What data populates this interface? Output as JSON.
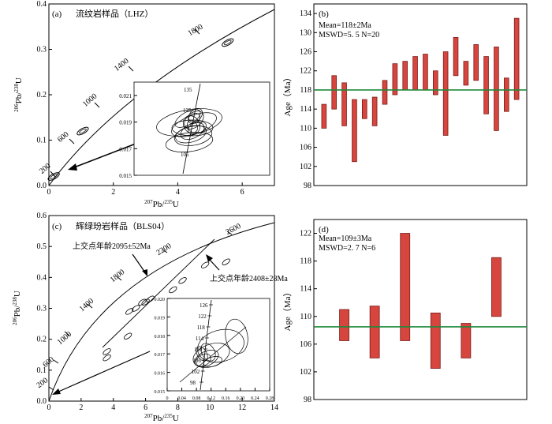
{
  "chart_data": [
    {
      "id": "a",
      "type": "scatter",
      "panel_label": "(a)",
      "title": "流纹岩样品（LHZ）",
      "xlabel_parts": [
        "207",
        "Pb/",
        "235",
        "U"
      ],
      "ylabel_parts": [
        "206",
        "Pb/",
        "238",
        "U"
      ],
      "xlim": [
        0,
        7
      ],
      "ylim": [
        0,
        0.4
      ],
      "xticks": [
        "0",
        "2",
        "4",
        "6"
      ],
      "yticks": [
        "0.0",
        "0.1",
        "0.2",
        "0.3",
        "0.4"
      ],
      "concordia_labels": [
        "200",
        "600",
        "1000",
        "1400",
        "1800"
      ],
      "ellipses": [
        {
          "x": 5.55,
          "y": 0.315
        },
        {
          "x": 1.05,
          "y": 0.12
        },
        {
          "x": 0.15,
          "y": 0.02
        }
      ],
      "inset": {
        "xlim": [
          0.02,
          0.2
        ],
        "ylim": [
          0.015,
          0.022
        ],
        "yticks": [
          "0.021",
          "0.019",
          "0.017",
          "0.015"
        ],
        "concordia_labels": [
          "135",
          "125",
          "105"
        ]
      }
    },
    {
      "id": "b",
      "type": "bar",
      "panel_label": "(b)",
      "ylabel": "Age（Ma）",
      "ylim": [
        98,
        136
      ],
      "yticks": [
        "98",
        "102",
        "106",
        "110",
        "114",
        "118",
        "122",
        "126",
        "130",
        "134"
      ],
      "stats_line1": "Mean=118±2Ma",
      "stats_line2": "MSWD=5. 5  N=20",
      "mean": 118,
      "bars": [
        [
          110,
          115
        ],
        [
          114,
          121
        ],
        [
          110.5,
          119.5
        ],
        [
          103,
          116
        ],
        [
          112,
          116
        ],
        [
          110.5,
          116.5
        ],
        [
          115,
          120
        ],
        [
          117,
          123.5
        ],
        [
          118,
          124
        ],
        [
          118,
          125
        ],
        [
          118,
          125.5
        ],
        [
          117,
          122
        ],
        [
          108.5,
          126
        ],
        [
          121,
          129
        ],
        [
          119,
          124
        ],
        [
          120,
          127.5
        ],
        [
          113,
          125
        ],
        [
          109.5,
          127
        ],
        [
          113.5,
          120.5
        ],
        [
          116,
          133
        ]
      ]
    },
    {
      "id": "c",
      "type": "scatter",
      "panel_label": "(c)",
      "title": "辉绿玢岩样品（BLS04）",
      "xlabel_parts": [
        "207",
        "Pb/",
        "235",
        "U"
      ],
      "ylabel_parts": [
        "206",
        "Pb/",
        "238",
        "U"
      ],
      "xlim": [
        0,
        14
      ],
      "ylim": [
        0,
        0.6
      ],
      "xticks": [
        "0",
        "2",
        "4",
        "6",
        "8",
        "10",
        "12",
        "14"
      ],
      "yticks": [
        "0.0",
        "0.1",
        "0.2",
        "0.3",
        "0.4",
        "0.5",
        "0.6"
      ],
      "concordia_labels": [
        "200",
        "600",
        "1000",
        "1400",
        "1800",
        "2200",
        "2600"
      ],
      "annotations": [
        "上交点年龄2095±52Ma",
        "上交点年龄2408±28Ma"
      ],
      "ellipses": [
        {
          "x": 3.6,
          "y": 0.14
        },
        {
          "x": 3.6,
          "y": 0.16
        },
        {
          "x": 4.9,
          "y": 0.21
        },
        {
          "x": 5.0,
          "y": 0.29
        },
        {
          "x": 5.4,
          "y": 0.3
        },
        {
          "x": 5.8,
          "y": 0.32
        },
        {
          "x": 6.0,
          "y": 0.32
        },
        {
          "x": 6.3,
          "y": 0.33
        },
        {
          "x": 7.7,
          "y": 0.36
        },
        {
          "x": 8.3,
          "y": 0.39
        },
        {
          "x": 9.7,
          "y": 0.44
        },
        {
          "x": 11.0,
          "y": 0.45
        }
      ],
      "inset": {
        "xlim": [
          0,
          0.28
        ],
        "ylim": [
          0.015,
          0.02
        ],
        "xticks": [
          "0",
          "0.04",
          "0.08",
          "0.12",
          "0.16",
          "0.20",
          "0.24",
          "0.28"
        ],
        "yticks": [
          "0.020",
          "0.019",
          "0.018",
          "0.017",
          "0.016",
          "0.015"
        ],
        "concordia_labels": [
          "126",
          "122",
          "118",
          "114",
          "110",
          "106",
          "102",
          "98"
        ]
      }
    },
    {
      "id": "d",
      "type": "bar",
      "panel_label": "(d)",
      "ylabel": "Age（Ma）",
      "ylim": [
        98,
        124
      ],
      "yticks": [
        "98",
        "102",
        "106",
        "110",
        "114",
        "118",
        "122"
      ],
      "stats_line1": "Mean=109±3Ma",
      "stats_line2": "MSWD=2. 7  N=6",
      "mean": 108.5,
      "bars": [
        [
          106.5,
          111
        ],
        [
          104,
          111.5
        ],
        [
          106.5,
          122
        ],
        [
          102.5,
          110.5
        ],
        [
          104,
          109
        ],
        [
          110,
          118.5
        ]
      ]
    }
  ],
  "colors": {
    "bar_fill": "#d6453e",
    "bar_stroke": "#7a1d1a",
    "mean_line": "#1f8a3c",
    "axis": "#000000"
  }
}
